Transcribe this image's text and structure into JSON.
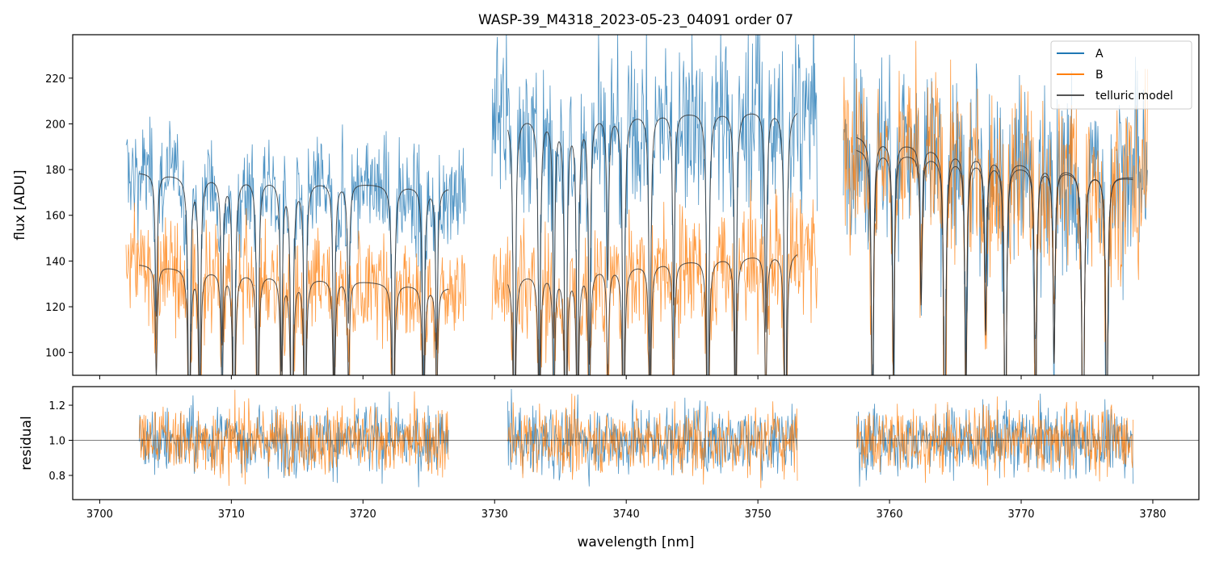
{
  "chart_data": {
    "type": "line",
    "title": "WASP-39_M4318_2023-05-23_04091  order 07",
    "xlabel": "wavelength [nm]",
    "ylabel_top": "flux [ADU]",
    "ylabel_bottom": "residual",
    "xlim": [
      3697.95,
      3783.5
    ],
    "ylim_top": [
      90,
      239
    ],
    "ylim_bottom": [
      0.662,
      1.306
    ],
    "xticks": [
      "3700",
      "3710",
      "3720",
      "3730",
      "3740",
      "3750",
      "3760",
      "3770",
      "3780"
    ],
    "yticks_top": [
      "100",
      "120",
      "140",
      "160",
      "180",
      "200",
      "220"
    ],
    "yticks_bottom": [
      "0.8",
      "1.0",
      "1.2"
    ],
    "residual_reference": 1.0,
    "legend": {
      "placement": "top-right",
      "entries": [
        "A",
        "B",
        "telluric model"
      ]
    },
    "colors": {
      "A": "#1f77b4",
      "B": "#ff7f0e",
      "model": "#333333"
    },
    "segments": [
      {
        "data_range": [
          3702.0,
          3727.8
        ],
        "model_range": [
          3703.0,
          3726.5
        ],
        "A_level": [
          179,
          172
        ],
        "B_level": [
          139,
          128
        ],
        "A_noise": 12,
        "B_noise": 12
      },
      {
        "data_range": [
          3729.8,
          3754.5
        ],
        "model_range": [
          3731.0,
          3753.0
        ],
        "A_level": [
          203,
          207
        ],
        "B_level": [
          133,
          145
        ],
        "A_noise": 20,
        "B_noise": 14
      },
      {
        "data_range": [
          3756.5,
          3779.6
        ],
        "model_range": [
          3757.5,
          3778.5
        ],
        "A_level": [
          196,
          175
        ],
        "B_level": [
          190,
          176
        ],
        "A_noise": 20,
        "B_noise": 20
      }
    ],
    "telluric_lines_nm": [
      3704.3,
      3706.8,
      3707.6,
      3709.3,
      3710.2,
      3712.0,
      3713.8,
      3714.6,
      3715.6,
      3717.8,
      3718.9,
      3722.3,
      3724.6,
      3725.6,
      3731.5,
      3733.4,
      3734.5,
      3735.4,
      3736.3,
      3737.2,
      3738.6,
      3739.8,
      3741.8,
      3743.6,
      3746.2,
      3748.3,
      3750.6,
      3752.1,
      3758.7,
      3760.3,
      3762.4,
      3764.2,
      3765.8,
      3767.3,
      3768.8,
      3771.1,
      3772.5,
      3774.7,
      3776.5
    ]
  }
}
